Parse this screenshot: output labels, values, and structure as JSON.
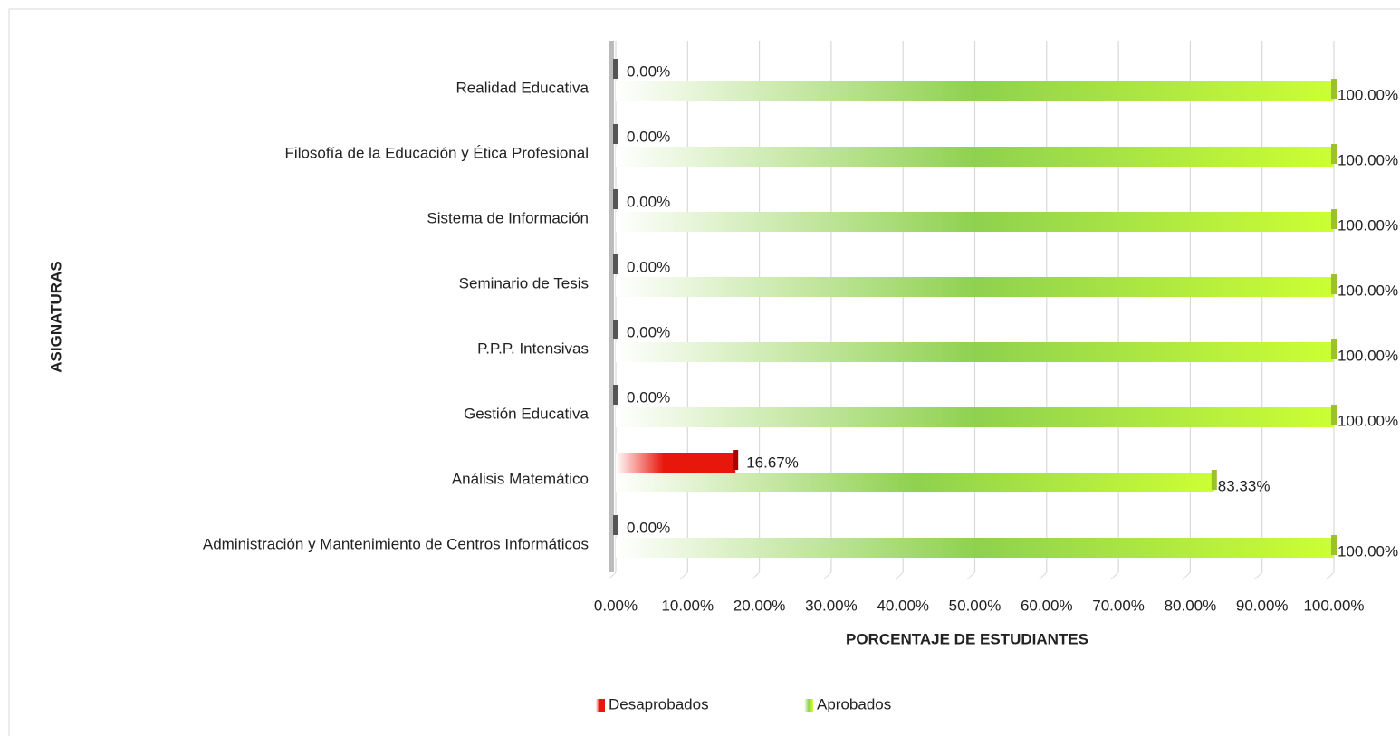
{
  "chart_data": {
    "type": "bar",
    "orientation": "horizontal",
    "x_label": "PORCENTAJE DE ESTUDIANTES",
    "y_label": "ASIGNATURAS",
    "categories": [
      "Realidad Educativa",
      "Filosofía de la Educación y Ética Profesional",
      "Sistema de Información",
      "Seminario de Tesis",
      "P.P.P. Intensivas",
      "Gestión Educativa",
      "Análisis Matemático",
      "Administración y Mantenimiento de Centros Informáticos"
    ],
    "series": [
      {
        "name": "Desaprobados",
        "color": "#e8170c",
        "values": [
          0,
          0,
          0,
          0,
          0,
          0,
          16.67,
          0
        ],
        "value_labels": [
          "0.00%",
          "0.00%",
          "0.00%",
          "0.00%",
          "0.00%",
          "0.00%",
          "16.67%",
          "0.00%"
        ]
      },
      {
        "name": "Aprobados",
        "color": "#8fd14f",
        "values": [
          100,
          100,
          100,
          100,
          100,
          100,
          83.33,
          100
        ],
        "value_labels": [
          "100.00%",
          "100.00%",
          "100.00%",
          "100.00%",
          "100.00%",
          "100.00%",
          "83.33%",
          "100.00%"
        ]
      }
    ],
    "xlim": [
      0,
      100
    ],
    "xticks": [
      {
        "value": 0,
        "label": "0.00%"
      },
      {
        "value": 10,
        "label": "10.00%"
      },
      {
        "value": 20,
        "label": "20.00%"
      },
      {
        "value": 30,
        "label": "30.00%"
      },
      {
        "value": 40,
        "label": "40.00%"
      },
      {
        "value": 50,
        "label": "50.00%"
      },
      {
        "value": 60,
        "label": "60.00%"
      },
      {
        "value": 70,
        "label": "70.00%"
      },
      {
        "value": 80,
        "label": "80.00%"
      },
      {
        "value": 90,
        "label": "90.00%"
      },
      {
        "value": 100,
        "label": "100.00%"
      }
    ],
    "grid": true,
    "legend": "bottom"
  }
}
